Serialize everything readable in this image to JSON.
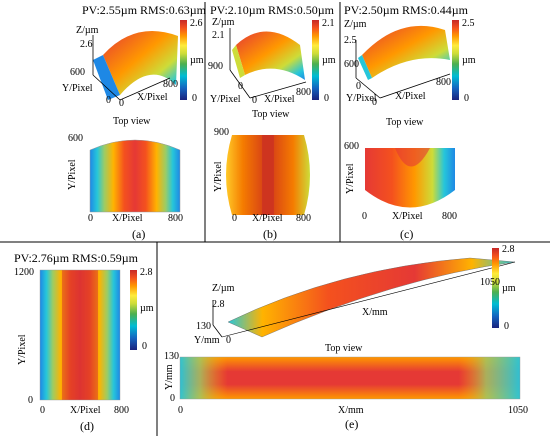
{
  "colors": {
    "scale": [
      "#1a237e",
      "#1565c0",
      "#00bcd4",
      "#4caf50",
      "#cddc39",
      "#ffeb3b",
      "#ff9800",
      "#f4511e",
      "#d32f2f",
      "#b71c1c"
    ],
    "frame": "#000000",
    "background": "#ffffff"
  },
  "panel_a": {
    "title": "PV:2.55µm RMS:0.63µm",
    "z_label": "Z/µm",
    "z_value": "2.6",
    "y_tick": "600",
    "x_tick": "800",
    "zero1": "0",
    "zero2": "0",
    "y_label": "Y/Pixel",
    "x_label": "X/Pixel",
    "bar_max": "2.6",
    "bar_unit": "µm",
    "bar_min": "0",
    "top_view": "Top view",
    "tv_y_tick": "600",
    "tv_y_label": "Y/Pixel",
    "tv_x0": "0",
    "tv_x_label": "X/Pixel",
    "tv_x_tick": "800",
    "caption": "(a)"
  },
  "panel_b": {
    "title": "PV:2.10µm RMS:0.50µm",
    "z_label": "Z/µm",
    "z_value": "2.1",
    "y_tick": "900",
    "zero1": "0",
    "zero2": "0",
    "x_tick": "800",
    "y_label": "Y/Pixel",
    "x_label": "X/Pixel",
    "bar_max": "2.1",
    "bar_unit": "µm",
    "bar_min": "0",
    "top_view": "Top view",
    "tv_y_tick": "900",
    "tv_y_label": "Y/Pixel",
    "tv_x0": "0",
    "tv_x_label": "X/Pixel",
    "tv_x_tick": "800",
    "caption": "(b)"
  },
  "panel_c": {
    "title": "PV:2.50µm RMS:0.44µm",
    "z_label": "Z/µm",
    "z_value": "2.5",
    "y_tick": "600",
    "zero1": "0",
    "zero2": "0",
    "x_tick": "800",
    "y_label": "Y/Pixel",
    "x_label": "X/Pixel",
    "bar_max": "2.5",
    "bar_unit": "µm",
    "bar_min": "0",
    "top_view": "Top view",
    "tv_y_tick": "600",
    "tv_y_label": "Y/Pixel",
    "tv_x0": "0",
    "tv_x_label": "X/Pixel",
    "tv_x_tick": "800",
    "caption": "(c)"
  },
  "panel_d": {
    "title": "PV:2.76µm RMS:0.59µm",
    "y_tick": "1200",
    "y_label": "Y/Pixel",
    "y0": "0",
    "x0": "0",
    "x_label": "X/Pixel",
    "x_tick": "800",
    "bar_max": "2.8",
    "bar_unit": "µm",
    "bar_min": "0",
    "caption": "(d)"
  },
  "panel_e": {
    "z_label": "Z/µm",
    "z_value": "2.8",
    "y_tick": "130",
    "y_label": "Y/mm",
    "zero": "0",
    "x_tick": "1050",
    "x_label": "X/mm",
    "bar_max": "2.8",
    "bar_unit": "µm",
    "bar_min": "0",
    "top_view": "Top view",
    "tv_y_tick": "130",
    "tv_y_label": "Y/mm",
    "tv_y0": "0",
    "tv_x0": "0",
    "tv_x_label": "X/mm",
    "tv_x_tick": "1050",
    "caption": "(e)"
  }
}
